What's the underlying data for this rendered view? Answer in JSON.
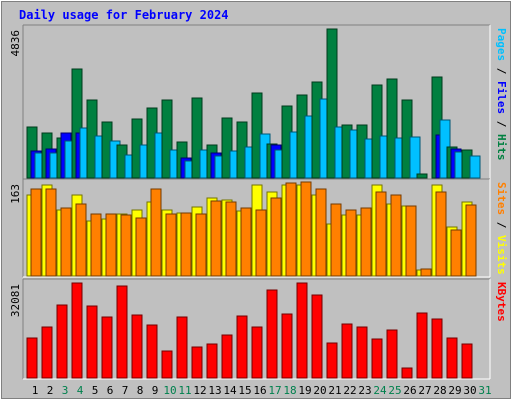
{
  "chart_data": {
    "type": "bar",
    "title": "Daily usage for February 2024",
    "categories": [
      "1",
      "2",
      "3",
      "4",
      "5",
      "6",
      "7",
      "8",
      "9",
      "10",
      "11",
      "12",
      "13",
      "14",
      "15",
      "16",
      "17",
      "18",
      "19",
      "20",
      "21",
      "22",
      "23",
      "24",
      "25",
      "26",
      "27",
      "28",
      "29",
      "30",
      "31"
    ],
    "weekend_days": [
      "3",
      "4",
      "10",
      "11",
      "17",
      "18",
      "24",
      "25",
      "31"
    ],
    "panels": [
      {
        "id": "hits-files-pages",
        "ymax_label": "4836",
        "ymax": 4836,
        "series": [
          {
            "name": "Hits",
            "color": "#008040",
            "values": [
              1650,
              1450,
              1300,
              3520,
              2520,
              1800,
              1050,
              1900,
              2250,
              2520,
              1150,
              2580,
              1050,
              1950,
              1800,
              2750,
              1100,
              2330,
              2670,
              3110,
              4810,
              1700,
              1700,
              3000,
              3200,
              2520,
              120,
              3250,
              1000,
              900,
              0
            ]
          },
          {
            "name": "Files",
            "color": "#0000ff",
            "values": [
              870,
              930,
              1450,
              1450,
              0,
              0,
              0,
              0,
              0,
              0,
              630,
              0,
              800,
              0,
              0,
              0,
              1050,
              0,
              0,
              0,
              0,
              0,
              0,
              0,
              0,
              0,
              0,
              1380,
              940,
              0,
              0
            ]
          },
          {
            "name": "Pages",
            "color": "#00c0ff",
            "values": [
              820,
              800,
              1200,
              1600,
              1350,
              1200,
              740,
              1050,
              1450,
              900,
              550,
              900,
              700,
              860,
              1000,
              1430,
              900,
              1470,
              2000,
              2550,
              1650,
              1550,
              1250,
              1350,
              1300,
              1320,
              0,
              1860,
              850,
              700,
              0
            ]
          }
        ],
        "axis_label_parts": [
          {
            "text": "Pages",
            "color": "#00c0ff"
          },
          {
            "text": " / ",
            "color": "#000000"
          },
          {
            "text": "Files",
            "color": "#0000ff"
          },
          {
            "text": " / ",
            "color": "#000000"
          },
          {
            "text": "Hits",
            "color": "#008040"
          }
        ]
      },
      {
        "id": "visits-sites",
        "ymax_label": "163",
        "ymax": 163,
        "series": [
          {
            "name": "Visits",
            "color": "#ffff00",
            "values": [
              140,
              158,
              115,
              140,
              95,
              98,
              108,
              115,
              128,
              115,
              110,
              120,
              135,
              132,
              112,
              158,
              145,
              158,
              158,
              140,
              90,
              106,
              106,
              158,
              125,
              122,
              10,
              158,
              85,
              128,
              0
            ]
          },
          {
            "name": "Sites",
            "color": "#ff8000",
            "values": [
              150,
              150,
              118,
              125,
              108,
              108,
              105,
              100,
              150,
              108,
              110,
              108,
              130,
              128,
              118,
              115,
              135,
              162,
              163,
              150,
              125,
              115,
              118,
              145,
              140,
              122,
              12,
              145,
              80,
              123,
              0
            ]
          }
        ],
        "axis_label_parts": [
          {
            "text": "Sites",
            "color": "#ff8000"
          },
          {
            "text": " / ",
            "color": "#000000"
          },
          {
            "text": "Visits",
            "color": "#ffff00"
          }
        ]
      },
      {
        "id": "kbytes",
        "ymax_label": "32081",
        "ymax": 32081,
        "series": [
          {
            "name": "KBytes",
            "color": "#ff0000",
            "values": [
              13400,
              17200,
              24500,
              31800,
              24100,
              20500,
              30900,
              21000,
              17800,
              8900,
              20500,
              10300,
              11500,
              14500,
              20800,
              17200,
              29300,
              21300,
              31700,
              27600,
              11800,
              18000,
              17000,
              13000,
              16200,
              3500,
              21700,
              19800,
              13400,
              11500,
              0
            ]
          }
        ],
        "axis_label_parts": [
          {
            "text": "KBytes",
            "color": "#ff0000"
          }
        ]
      }
    ]
  }
}
